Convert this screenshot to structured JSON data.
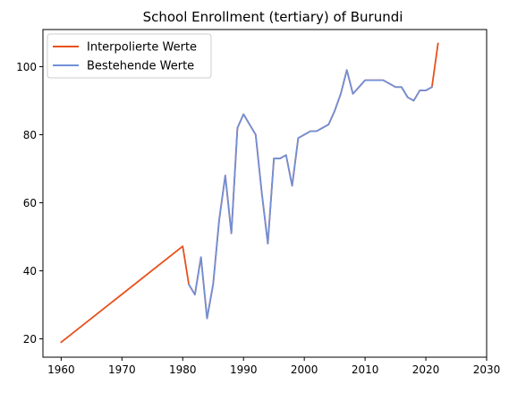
{
  "chart_data": {
    "type": "line",
    "title": "School Enrollment (tertiary) of Burundi",
    "xlabel": "",
    "ylabel": "",
    "xlim": [
      1957,
      2030
    ],
    "ylim": [
      14.6,
      110.9
    ],
    "x_ticks": [
      1960,
      1970,
      1980,
      1990,
      2000,
      2010,
      2020,
      2030
    ],
    "y_ticks": [
      20,
      40,
      60,
      80,
      100
    ],
    "grid": false,
    "legend_position": "top-left",
    "series": [
      {
        "name": "Interpolierte Werte",
        "color": "#e8501c",
        "points": [
          [
            1960,
            19
          ],
          [
            1980,
            47.2
          ],
          [
            1981,
            36
          ],
          [
            1982,
            33
          ],
          [
            1983,
            44
          ],
          [
            1984,
            26
          ],
          [
            1985,
            36
          ],
          [
            1986,
            55
          ],
          [
            1987,
            68
          ],
          [
            1988,
            51
          ],
          [
            1989,
            82
          ],
          [
            1990,
            86
          ],
          [
            1991,
            83
          ],
          [
            1992,
            80
          ],
          [
            1993,
            63
          ],
          [
            1994,
            48
          ],
          [
            1995,
            73
          ],
          [
            1996,
            73
          ],
          [
            1997,
            74
          ],
          [
            1998,
            65
          ],
          [
            1999,
            79
          ],
          [
            2000,
            80
          ],
          [
            2001,
            81
          ],
          [
            2002,
            81
          ],
          [
            2003,
            82
          ],
          [
            2004,
            83
          ],
          [
            2005,
            87
          ],
          [
            2006,
            92
          ],
          [
            2007,
            99
          ],
          [
            2008,
            92
          ],
          [
            2009,
            94
          ],
          [
            2010,
            96
          ],
          [
            2011,
            96
          ],
          [
            2012,
            96
          ],
          [
            2013,
            96
          ],
          [
            2014,
            95
          ],
          [
            2015,
            94
          ],
          [
            2016,
            94
          ],
          [
            2017,
            91
          ],
          [
            2018,
            90
          ],
          [
            2019,
            93
          ],
          [
            2020,
            93
          ],
          [
            2021,
            94
          ],
          [
            2022,
            106.8
          ]
        ]
      },
      {
        "name": "Bestehende Werte",
        "color": "#7090d8",
        "points": [
          [
            1981,
            36
          ],
          [
            1982,
            33
          ],
          [
            1983,
            44
          ],
          [
            1984,
            26
          ],
          [
            1985,
            36
          ],
          [
            1986,
            55
          ],
          [
            1987,
            68
          ],
          [
            1988,
            51
          ],
          [
            1989,
            82
          ],
          [
            1990,
            86
          ],
          [
            1991,
            83
          ],
          [
            1992,
            80
          ],
          [
            1993,
            63
          ],
          [
            1994,
            48
          ],
          [
            1995,
            73
          ],
          [
            1996,
            73
          ],
          [
            1997,
            74
          ],
          [
            1998,
            65
          ],
          [
            1999,
            79
          ],
          [
            2000,
            80
          ],
          [
            2001,
            81
          ],
          [
            2002,
            81
          ],
          [
            2003,
            82
          ],
          [
            2004,
            83
          ],
          [
            2005,
            87
          ],
          [
            2006,
            92
          ],
          [
            2007,
            99
          ],
          [
            2008,
            92
          ],
          [
            2009,
            94
          ],
          [
            2010,
            96
          ],
          [
            2011,
            96
          ],
          [
            2012,
            96
          ],
          [
            2013,
            96
          ],
          [
            2014,
            95
          ],
          [
            2015,
            94
          ],
          [
            2016,
            94
          ],
          [
            2017,
            91
          ],
          [
            2018,
            90
          ],
          [
            2019,
            93
          ],
          [
            2020,
            93
          ],
          [
            2021,
            94
          ]
        ]
      }
    ]
  }
}
